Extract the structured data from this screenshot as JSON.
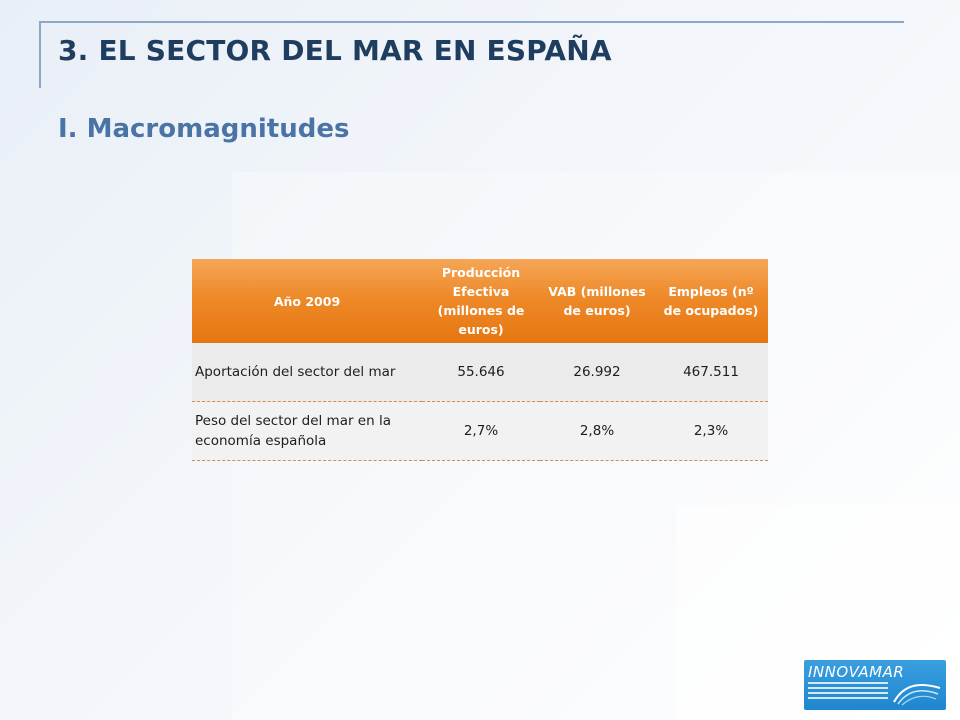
{
  "slide": {
    "title": "3. EL SECTOR DEL MAR EN ESPAÑA",
    "subtitle": "I. Macromagnitudes"
  },
  "table": {
    "headers": [
      "Año 2009",
      "Producción Efectiva (millones de euros)",
      "VAB (millones de euros)",
      "Empleos (nº de ocupados)"
    ],
    "rows": [
      {
        "label": "Aportación del sector del mar",
        "values": [
          "55.646",
          "26.992",
          "467.511"
        ]
      },
      {
        "label": "Peso del sector del mar en la economía española",
        "values": [
          "2,7%",
          "2,8%",
          "2,3%"
        ]
      }
    ]
  },
  "logo": {
    "text": "INNOVAMAR",
    "name": "innovamar-logo"
  },
  "colors": {
    "title": "#1f3d5f",
    "subtitle": "#4b74a6",
    "header_orange": "#ee8a2a",
    "logo_blue": "#1f86cf",
    "frame_line": "#8ea8c4"
  }
}
